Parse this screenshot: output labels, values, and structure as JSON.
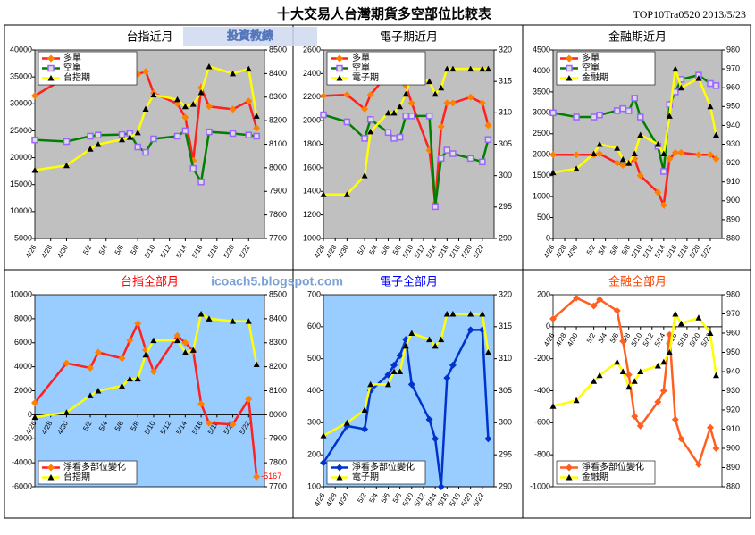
{
  "title": "十大交易人台灣期貨多空部位比較表",
  "code": "TOP10Tra0520 2013/5/23",
  "watermark": "icoach5.blogspot.com",
  "logo": "投資教練",
  "chart_data": [
    {
      "type": "line",
      "title": "台指近月",
      "title_color": "#000000",
      "background": "#c0c0c0",
      "legend": "top-left",
      "x": [
        "4/26",
        "4/30",
        "5/2",
        "5/3",
        "5/6",
        "5/7",
        "5/8",
        "5/9",
        "5/10",
        "5/13",
        "5/14",
        "5/15",
        "5/16",
        "5/17",
        "5/20",
        "5/22",
        "5/23"
      ],
      "xticks": [
        "4/26",
        "4/28",
        "4/30",
        "5/2",
        "5/4",
        "5/6",
        "5/8",
        "5/10",
        "5/12",
        "5/14",
        "5/16",
        "5/18",
        "5/20",
        "5/22"
      ],
      "xlim": [
        "4/26",
        "5/24"
      ],
      "ylim": [
        5000,
        40000
      ],
      "yticks": [
        5000,
        10000,
        15000,
        20000,
        25000,
        30000,
        35000,
        40000
      ],
      "y2lim": [
        7700,
        8500
      ],
      "y2ticks": [
        7700,
        7800,
        7900,
        8000,
        8100,
        8200,
        8300,
        8400,
        8500
      ],
      "series": [
        {
          "name": "多單",
          "color": "#ff2020",
          "marker": "diamond",
          "marker_color": "#ff8000",
          "values": [
            31500,
            35000,
            35500,
            35300,
            35000,
            34500,
            35500,
            36000,
            32000,
            30000,
            27500,
            19500,
            33000,
            29500,
            29000,
            30500,
            25500
          ]
        },
        {
          "name": "空單",
          "color": "#008000",
          "marker": "square",
          "marker_color": "#9966ff",
          "values": [
            23300,
            23000,
            24000,
            24200,
            24300,
            24500,
            22000,
            21000,
            23500,
            24000,
            25000,
            18000,
            15500,
            24800,
            24500,
            24200,
            24000
          ]
        },
        {
          "name": "台指期",
          "color": "#ffff00",
          "marker": "triangle",
          "marker_color": "#000000",
          "axis": "y2",
          "values": [
            7990,
            8010,
            8080,
            8100,
            8120,
            8130,
            8150,
            8250,
            8310,
            8290,
            8260,
            8270,
            8320,
            8430,
            8400,
            8420,
            8220
          ]
        }
      ]
    },
    {
      "type": "line",
      "title": "電子期近月",
      "title_color": "#000000",
      "background": "#c0c0c0",
      "legend": "top-left",
      "x": [
        "4/26",
        "4/30",
        "5/2",
        "5/3",
        "5/6",
        "5/7",
        "5/8",
        "5/9",
        "5/10",
        "5/13",
        "5/14",
        "5/15",
        "5/16",
        "5/17",
        "5/20",
        "5/22",
        "5/23"
      ],
      "xticks": [
        "4/26",
        "4/28",
        "4/30",
        "5/2",
        "5/4",
        "5/6",
        "5/8",
        "5/10",
        "5/12",
        "5/14",
        "5/16",
        "5/18",
        "5/20",
        "5/22"
      ],
      "xlim": [
        "4/26",
        "5/24"
      ],
      "ylim": [
        1000,
        2600
      ],
      "yticks": [
        1000,
        1200,
        1400,
        1600,
        1800,
        2000,
        2200,
        2400,
        2600
      ],
      "y2lim": [
        290,
        320
      ],
      "y2ticks": [
        290,
        295,
        300,
        305,
        310,
        315,
        320
      ],
      "series": [
        {
          "name": "多單",
          "color": "#ff2020",
          "marker": "diamond",
          "marker_color": "#ff8000",
          "values": [
            2210,
            2220,
            2100,
            2220,
            2400,
            2380,
            2350,
            2300,
            2150,
            1750,
            1300,
            1950,
            2150,
            2150,
            2200,
            2150,
            1960
          ]
        },
        {
          "name": "空單",
          "color": "#008000",
          "marker": "square",
          "marker_color": "#9966ff",
          "values": [
            2050,
            1990,
            1850,
            2010,
            1900,
            1850,
            1860,
            2040,
            2040,
            2040,
            1270,
            1680,
            1750,
            1720,
            1680,
            1650,
            1840
          ]
        },
        {
          "name": "電子期",
          "color": "#ffff00",
          "marker": "triangle",
          "marker_color": "#000000",
          "axis": "y2",
          "values": [
            297,
            297,
            300,
            307,
            310,
            310,
            311,
            313,
            316,
            315,
            313,
            314,
            317,
            317,
            317,
            317,
            317
          ]
        }
      ]
    },
    {
      "type": "line",
      "title": "金融期近月",
      "title_color": "#000000",
      "background": "#c0c0c0",
      "legend": "top-left",
      "x": [
        "4/26",
        "4/30",
        "5/2",
        "5/3",
        "5/6",
        "5/7",
        "5/8",
        "5/9",
        "5/10",
        "5/13",
        "5/14",
        "5/15",
        "5/16",
        "5/17",
        "5/20",
        "5/22",
        "5/23"
      ],
      "xticks": [
        "4/26",
        "4/28",
        "4/30",
        "5/2",
        "5/4",
        "5/6",
        "5/8",
        "5/10",
        "5/12",
        "5/14",
        "5/16",
        "5/18",
        "5/20",
        "5/22"
      ],
      "xlim": [
        "4/26",
        "5/24"
      ],
      "ylim": [
        0,
        4500
      ],
      "yticks": [
        0,
        500,
        1000,
        1500,
        2000,
        2500,
        3000,
        3500,
        4000,
        4500
      ],
      "y2lim": [
        880,
        980
      ],
      "y2ticks": [
        880,
        890,
        900,
        910,
        920,
        930,
        940,
        950,
        960,
        970,
        980
      ],
      "series": [
        {
          "name": "多單",
          "color": "#ff2020",
          "marker": "diamond",
          "marker_color": "#ff8000",
          "values": [
            2000,
            2000,
            2000,
            2020,
            1800,
            1750,
            1800,
            1900,
            1500,
            1100,
            800,
            1900,
            2050,
            2050,
            2000,
            2000,
            1900
          ]
        },
        {
          "name": "空單",
          "color": "#008000",
          "marker": "square",
          "marker_color": "#9966ff",
          "values": [
            3000,
            2900,
            2900,
            2950,
            3050,
            3100,
            3050,
            3350,
            2900,
            2200,
            1600,
            3200,
            3500,
            3800,
            3900,
            3700,
            3650
          ]
        },
        {
          "name": "金融期",
          "color": "#ffff00",
          "marker": "triangle",
          "marker_color": "#000000",
          "axis": "y2",
          "values": [
            915,
            917,
            925,
            930,
            928,
            922,
            920,
            925,
            935,
            930,
            925,
            945,
            970,
            960,
            965,
            950,
            935
          ]
        }
      ]
    },
    {
      "type": "line",
      "title": "台指全部月",
      "title_color": "#ff0000",
      "background": "#99ccff",
      "legend": "bottom-left",
      "x": [
        "4/26",
        "4/30",
        "5/2",
        "5/3",
        "5/6",
        "5/7",
        "5/8",
        "5/9",
        "5/10",
        "5/13",
        "5/14",
        "5/15",
        "5/16",
        "5/17",
        "5/20",
        "5/22",
        "5/23"
      ],
      "xticks": [
        "4/26",
        "4/28",
        "4/30",
        "5/2",
        "5/4",
        "5/6",
        "5/8",
        "5/10",
        "5/12",
        "5/14",
        "5/16",
        "5/18",
        "5/20",
        "5/22"
      ],
      "xlim": [
        "4/26",
        "5/24"
      ],
      "ylim": [
        -6000,
        10000
      ],
      "yticks": [
        -6000,
        -4000,
        -2000,
        0,
        2000,
        4000,
        6000,
        8000,
        10000
      ],
      "y2lim": [
        7700,
        8500
      ],
      "y2ticks": [
        7700,
        7800,
        7900,
        8000,
        8100,
        8200,
        8300,
        8400,
        8500
      ],
      "series": [
        {
          "name": "淨看多部位變化",
          "color": "#ff2020",
          "marker": "diamond",
          "marker_color": "#ff8000",
          "last_label": true,
          "values": [
            1000,
            4300,
            3900,
            5200,
            4700,
            6200,
            7600,
            5400,
            3600,
            6600,
            6000,
            5300,
            900,
            -700,
            -800,
            1300,
            -5167
          ]
        },
        {
          "name": "台指期",
          "color": "#ffff00",
          "marker": "triangle",
          "marker_color": "#000000",
          "axis": "y2",
          "values": [
            7990,
            8010,
            8080,
            8100,
            8120,
            8150,
            8150,
            8250,
            8310,
            8310,
            8260,
            8270,
            8420,
            8400,
            8390,
            8390,
            8210
          ]
        }
      ]
    },
    {
      "type": "line",
      "title": "電子全部月",
      "title_color": "#0000ff",
      "background": "#99ccff",
      "legend": "bottom-left",
      "x": [
        "4/26",
        "4/30",
        "5/2",
        "5/3",
        "5/6",
        "5/7",
        "5/8",
        "5/9",
        "5/10",
        "5/13",
        "5/14",
        "5/15",
        "5/16",
        "5/17",
        "5/20",
        "5/22",
        "5/23"
      ],
      "xticks": [
        "4/26",
        "4/28",
        "4/30",
        "5/2",
        "5/4",
        "5/6",
        "5/8",
        "5/10",
        "5/12",
        "5/14",
        "5/16",
        "5/18",
        "5/20",
        "5/22"
      ],
      "xlim": [
        "4/26",
        "5/24"
      ],
      "ylim": [
        100,
        700
      ],
      "yticks": [
        100,
        200,
        300,
        400,
        500,
        600,
        700
      ],
      "y2lim": [
        290,
        320
      ],
      "y2ticks": [
        290,
        295,
        300,
        305,
        310,
        315,
        320
      ],
      "series": [
        {
          "name": "淨看多部位變化",
          "color": "#0033cc",
          "marker": "diamond",
          "marker_color": "#0033cc",
          "values": [
            175,
            290,
            280,
            400,
            450,
            480,
            510,
            560,
            420,
            310,
            250,
            100,
            440,
            480,
            590,
            590,
            250
          ]
        },
        {
          "name": "電子期",
          "color": "#ffff00",
          "marker": "triangle",
          "marker_color": "#000000",
          "axis": "y2",
          "values": [
            298,
            300,
            302,
            306,
            306,
            308,
            308,
            312,
            314,
            313,
            312,
            313,
            317,
            317,
            317,
            317,
            311
          ]
        }
      ]
    },
    {
      "type": "line",
      "title": "金融全部月",
      "title_color": "#ff4500",
      "background": "#ffffff",
      "legend": "bottom-left",
      "x": [
        "4/26",
        "4/30",
        "5/2",
        "5/3",
        "5/6",
        "5/7",
        "5/8",
        "5/9",
        "5/10",
        "5/13",
        "5/14",
        "5/15",
        "5/16",
        "5/17",
        "5/20",
        "5/22",
        "5/23"
      ],
      "xticks": [
        "4/26",
        "4/28",
        "4/30",
        "5/2",
        "5/4",
        "5/6",
        "5/8",
        "5/10",
        "5/12",
        "5/14",
        "5/16",
        "5/18",
        "5/20",
        "5/22"
      ],
      "xlim": [
        "4/26",
        "5/24"
      ],
      "ylim": [
        -1000,
        200
      ],
      "yticks": [
        -1000,
        -800,
        -600,
        -400,
        -200,
        0,
        200
      ],
      "y2lim": [
        880,
        980
      ],
      "y2ticks": [
        880,
        890,
        900,
        910,
        920,
        930,
        940,
        950,
        960,
        970,
        980
      ],
      "series": [
        {
          "name": "淨看多部位變化",
          "color": "#ff6020",
          "marker": "diamond",
          "marker_color": "#ff6020",
          "values": [
            50,
            180,
            130,
            170,
            100,
            -90,
            -300,
            -560,
            -620,
            -470,
            -400,
            -50,
            -580,
            -700,
            -860,
            -630,
            -760
          ]
        },
        {
          "name": "金融期",
          "color": "#ffff00",
          "marker": "triangle",
          "marker_color": "#000000",
          "axis": "y2",
          "values": [
            922,
            925,
            935,
            938,
            945,
            940,
            932,
            935,
            940,
            943,
            945,
            950,
            970,
            965,
            968,
            960,
            938
          ]
        }
      ]
    }
  ]
}
